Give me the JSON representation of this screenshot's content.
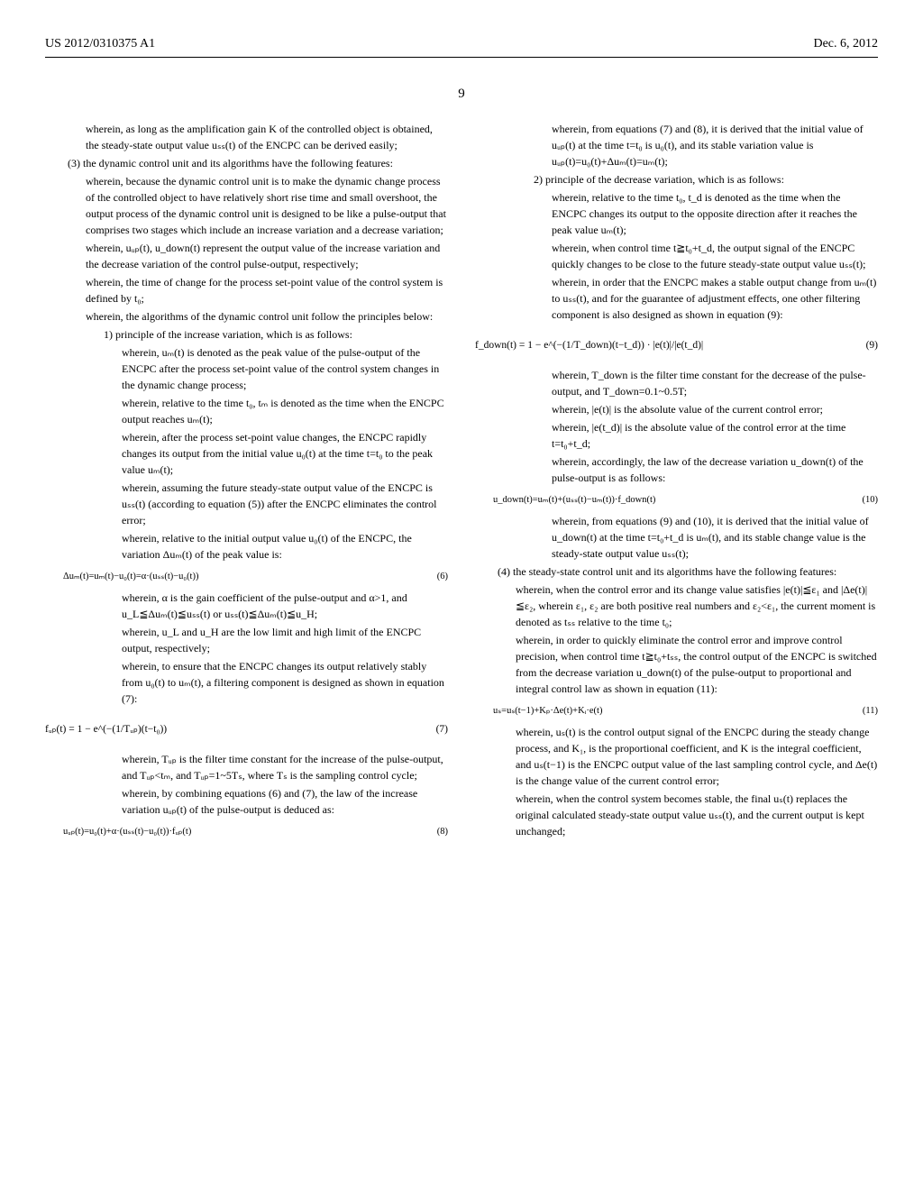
{
  "header": {
    "pub_number": "US 2012/0310375 A1",
    "date": "Dec. 6, 2012"
  },
  "page_number": "9",
  "col_left": {
    "p1": "wherein, as long as the amplification gain K of the controlled object is obtained, the steady-state output value uₛₛ(t) of the ENCPC can be derived easily;",
    "p2": "(3) the dynamic control unit and its algorithms have the following features:",
    "p3": "wherein, because the dynamic control unit is to make the dynamic change process of the controlled object to have relatively short rise time and small overshoot, the output process of the dynamic control unit is designed to be like a pulse-output that comprises two stages which include an increase variation and a decrease variation;",
    "p4": "wherein, uᵤₚ(t), u_down(t) represent the output value of the increase variation and the decrease variation of the control pulse-output, respectively;",
    "p5": "wherein, the time of change for the process set-point value of the control system is defined by t₀;",
    "p6": "wherein, the algorithms of the dynamic control unit follow the principles below:",
    "p7": "1) principle of the increase variation, which is as follows:",
    "p8": "wherein, uₘ(t) is denoted as the peak value of the pulse-output of the ENCPC after the process set-point value of the control system changes in the dynamic change process;",
    "p9": "wherein, relative to the time t₀, tₘ is denoted as the time when the ENCPC output reaches uₘ(t);",
    "p10": "wherein, after the process set-point value changes, the ENCPC rapidly changes its output from the initial value u₀(t) at the time t=t₀ to the peak value uₘ(t);",
    "p11": "wherein, assuming the future steady-state output value of the ENCPC is uₛₛ(t) (according to equation (5)) after the ENCPC eliminates the control error;",
    "p12": "wherein, relative to the initial output value u₀(t) of the ENCPC, the variation Δuₘ(t) of the peak value is:",
    "eq6": "Δuₘ(t)=uₘ(t)−u₀(t)=α·(uₛₛ(t)−u₀(t))",
    "eq6_num": "(6)",
    "p13": "wherein, α is the gain coefficient of the pulse-output and α>1, and u_L≦Δuₘ(t)≦uₛₛ(t) or uₛₛ(t)≦Δuₘ(t)≦u_H;",
    "p14": "wherein, u_L and u_H are the low limit and high limit of the ENCPC output, respectively;",
    "p15": "wherein, to ensure that the ENCPC changes its output relatively stably from u₀(t) to uₘ(t), a filtering component is designed as shown in equation (7):",
    "eq7": "fᵤₚ(t) = 1 − e^(−(1/Tᵤₚ)(t−t₀))",
    "eq7_num": "(7)",
    "p16": "wherein, Tᵤₚ is the filter time constant for the increase of the pulse-output, and Tᵤₚ<tₘ, and Tᵤₚ=1~5Tₛ, where Tₛ is the sampling control cycle;",
    "p17": "wherein, by combining equations (6) and (7), the law of the increase variation uᵤₚ(t) of the pulse-output is deduced as:",
    "eq8": "uᵤₚ(t)=u₀(t)+α·(uₛₛ(t)−u₀(t))·fᵤₚ(t)",
    "eq8_num": "(8)"
  },
  "col_right": {
    "p1": "wherein, from equations (7) and (8), it is derived that the initial value of uᵤₚ(t) at the time t=t₀ is u₀(t), and its stable variation value is uᵤₚ(t)=u₀(t)+Δuₘ(t)=uₘ(t);",
    "p2": "2) principle of the decrease variation, which is as follows:",
    "p3": "wherein, relative to the time t₀, t_d is denoted as the time when the ENCPC changes its output to the opposite direction after it reaches the peak value uₘ(t);",
    "p4": "wherein, when control time t≧t₀+t_d, the output signal of the ENCPC quickly changes to be close to the future steady-state output value uₛₛ(t);",
    "p5": "wherein, in order that the ENCPC makes a stable output change from uₘ(t) to uₛₛ(t), and for the guarantee of adjustment effects, one other filtering component is also designed as shown in equation (9):",
    "eq9": "f_down(t) = 1 − e^(−(1/T_down)(t−t_d)) · |e(t)|/|e(t_d)|",
    "eq9_num": "(9)",
    "p6": "wherein, T_down is the filter time constant for the decrease of the pulse-output, and T_down=0.1~0.5T;",
    "p7": "wherein, |e(t)| is the absolute value of the current control error;",
    "p8": "wherein, |e(t_d)| is the absolute value of the control error at the time t=t₀+t_d;",
    "p9": "wherein, accordingly, the law of the decrease variation u_down(t) of the pulse-output is as follows:",
    "eq10": "u_down(t)=uₘ(t)+(uₛₛ(t)−uₘ(t))·f_down(t)",
    "eq10_num": "(10)",
    "p10": "wherein, from equations (9) and (10), it is derived that the initial value of u_down(t) at the time t=t₀+t_d is uₘ(t), and its stable change value is the steady-state output value uₛₛ(t);",
    "p11": "(4) the steady-state control unit and its algorithms have the following features:",
    "p12": "wherein, when the control error and its change value satisfies |e(t)|≦ε₁ and |Δe(t)|≦ε₂, wherein ε₁, ε₂ are both positive real numbers and ε₂<ε₁, the current moment is denoted as tₛₛ relative to the time t₀;",
    "p13": "wherein, in order to quickly eliminate the control error and improve control precision, when control time t≧t₀+tₛₛ, the control output of the ENCPC is switched from the decrease variation u_down(t) of the pulse-output to proportional and integral control law as shown in equation (11):",
    "eq11": "uₛ=uₛ(t−1)+Kₚ·Δe(t)+Kᵢ·e(t)",
    "eq11_num": "(11)",
    "p14": "wherein, uₛ(t) is the control output signal of the ENCPC during the steady change process, and K₁, is the proportional coefficient, and K is the integral coefficient, and uₛ(t−1) is the ENCPC output value of the last sampling control cycle, and Δe(t) is the change value of the current control error;",
    "p15": "wherein, when the control system becomes stable, the final uₛ(t) replaces the original calculated steady-state output value uₛₛ(t), and the current output is kept unchanged;"
  }
}
